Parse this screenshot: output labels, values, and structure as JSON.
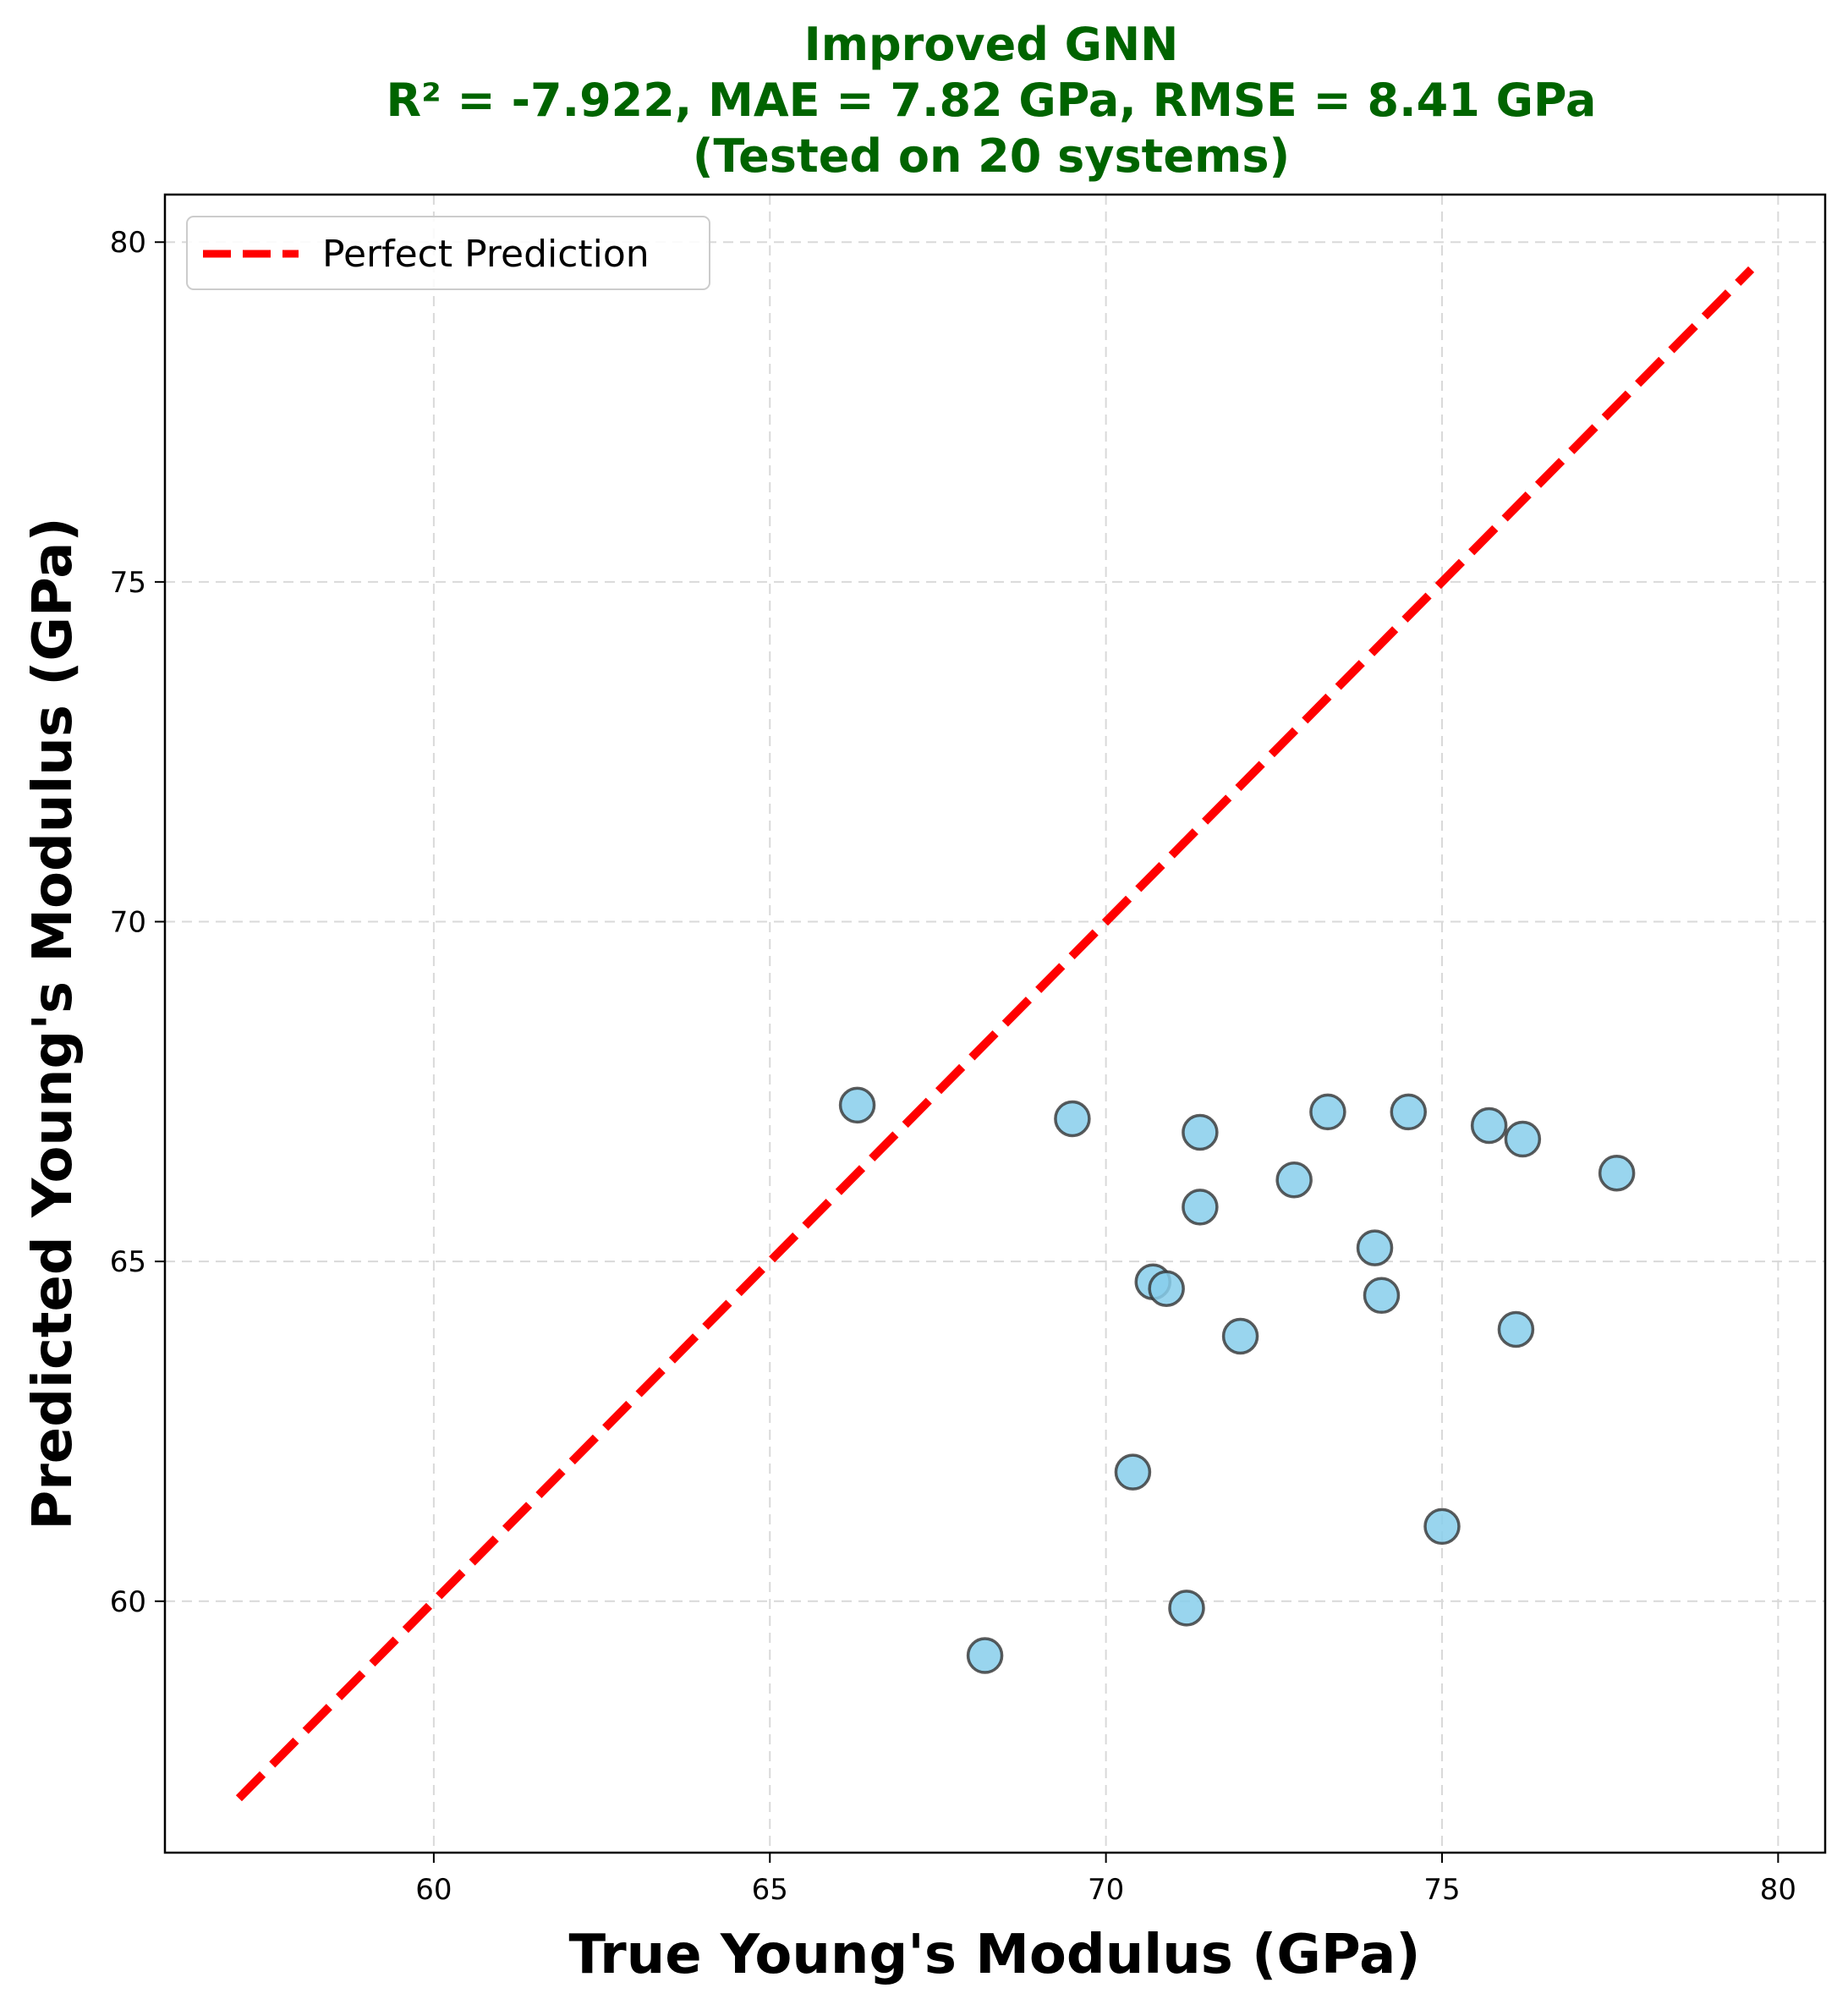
{
  "colors": {
    "title": "#006400",
    "points_fill": "#87ceeb",
    "points_stroke": "#333333",
    "reference_line": "#ff0000",
    "grid": "#d9d9d9"
  },
  "chart_data": {
    "type": "scatter",
    "title_lines": [
      "Improved GNN",
      "R² = -7.922, MAE = 7.82 GPa, RMSE = 8.41 GPa",
      "(Tested on 20 systems)"
    ],
    "xlabel": "True Young's Modulus (GPa)",
    "ylabel": "Predicted Young's Modulus (GPa)",
    "xlim": [
      56.0,
      80.7
    ],
    "ylim": [
      56.3,
      80.7
    ],
    "xticks": [
      60,
      65,
      70,
      75,
      80
    ],
    "yticks": [
      60,
      65,
      70,
      75,
      80
    ],
    "grid": true,
    "legend": {
      "placement": "top-left",
      "entries": [
        "Perfect Prediction"
      ]
    },
    "reference_line": {
      "name": "Perfect Prediction",
      "style": "dashed",
      "from": 57.1,
      "to": 79.6
    },
    "series": [
      {
        "points": [
          {
            "x": 66.3,
            "y": 67.3
          },
          {
            "x": 69.5,
            "y": 67.1
          },
          {
            "x": 71.4,
            "y": 66.9
          },
          {
            "x": 73.3,
            "y": 67.2
          },
          {
            "x": 74.5,
            "y": 67.2
          },
          {
            "x": 75.7,
            "y": 67.0
          },
          {
            "x": 76.2,
            "y": 66.8
          },
          {
            "x": 77.6,
            "y": 66.3
          },
          {
            "x": 72.8,
            "y": 66.2
          },
          {
            "x": 71.4,
            "y": 65.8
          },
          {
            "x": 74.0,
            "y": 65.2
          },
          {
            "x": 74.1,
            "y": 64.5
          },
          {
            "x": 70.7,
            "y": 64.7
          },
          {
            "x": 70.9,
            "y": 64.6
          },
          {
            "x": 72.0,
            "y": 63.9
          },
          {
            "x": 76.1,
            "y": 64.0
          },
          {
            "x": 70.4,
            "y": 61.9
          },
          {
            "x": 75.0,
            "y": 61.1
          },
          {
            "x": 71.2,
            "y": 59.9
          },
          {
            "x": 68.2,
            "y": 59.2
          }
        ]
      }
    ]
  }
}
